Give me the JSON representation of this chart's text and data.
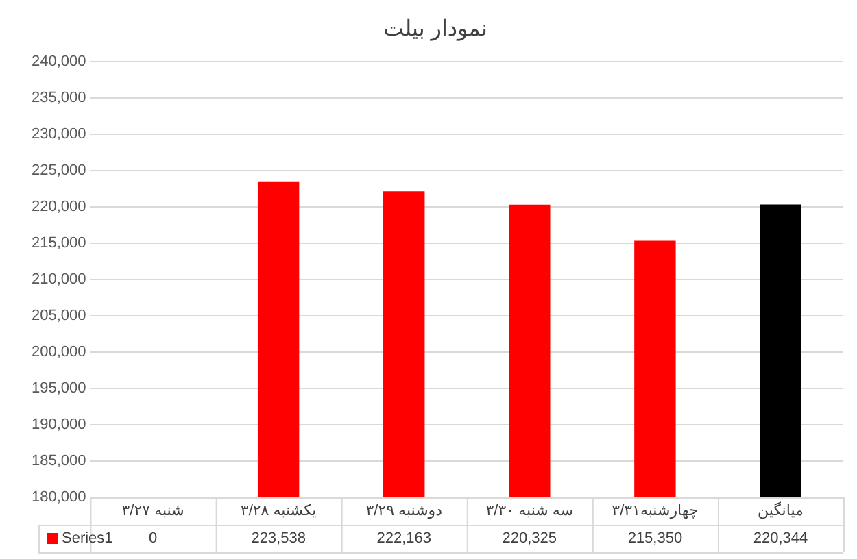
{
  "chart_data": {
    "type": "bar",
    "title": "نمودار بیلت",
    "categories": [
      "شنبه ۳/۲۷",
      "یکشنبه ۳/۲۸",
      "دوشنبه ۳/۲۹",
      "سه شنبه ۳/۳۰",
      "چهارشنبه۳/۳۱",
      "میانگین"
    ],
    "series": [
      {
        "name": "Series1",
        "color": "#ff0000",
        "colors": [
          "#ff0000",
          "#ff0000",
          "#ff0000",
          "#ff0000",
          "#ff0000",
          "#000000"
        ],
        "values": [
          null,
          223538,
          222163,
          220325,
          215350,
          220344
        ],
        "value_labels": [
          "0",
          "223,538",
          "222,163",
          "220,325",
          "215,350",
          "220,344"
        ]
      }
    ],
    "ylim": [
      180000,
      240000
    ],
    "yticks": [
      {
        "value": 180000,
        "label": "180,000"
      },
      {
        "value": 185000,
        "label": "185,000"
      },
      {
        "value": 190000,
        "label": "190,000"
      },
      {
        "value": 195000,
        "label": "195,000"
      },
      {
        "value": 200000,
        "label": "200,000"
      },
      {
        "value": 205000,
        "label": "205,000"
      },
      {
        "value": 210000,
        "label": "210,000"
      },
      {
        "value": 215000,
        "label": "215,000"
      },
      {
        "value": 220000,
        "label": "220,000"
      },
      {
        "value": 225000,
        "label": "225,000"
      },
      {
        "value": 230000,
        "label": "230,000"
      },
      {
        "value": 235000,
        "label": "235,000"
      },
      {
        "value": 240000,
        "label": "240,000"
      }
    ],
    "grid": "y",
    "legend": "bottom left"
  }
}
